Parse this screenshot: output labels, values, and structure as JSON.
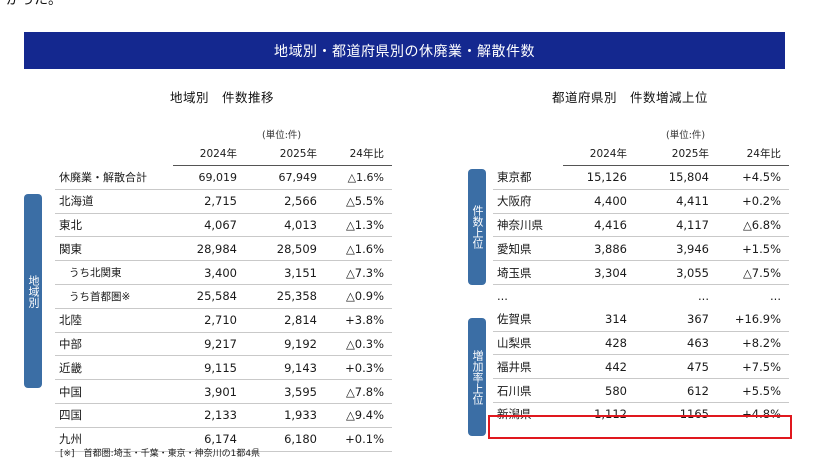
{
  "intro_text": "がった。",
  "banner_title": "地域別・都道府県別の休廃業・解散件数",
  "left": {
    "title": "地域別　件数推移",
    "unit": "(単位:件)",
    "side_label": "地域別",
    "headers": [
      "",
      "2024年",
      "2025年",
      "24年比"
    ],
    "rows": [
      {
        "name": "休廃業・解散合計",
        "y2024": "69,019",
        "y2025": "67,949",
        "ratio": "△1.6%"
      },
      {
        "name": "北海道",
        "y2024": "2,715",
        "y2025": "2,566",
        "ratio": "△5.5%"
      },
      {
        "name": "東北",
        "y2024": "4,067",
        "y2025": "4,013",
        "ratio": "△1.3%"
      },
      {
        "name": "関東",
        "y2024": "28,984",
        "y2025": "28,509",
        "ratio": "△1.6%"
      },
      {
        "name": "うち北関東",
        "y2024": "3,400",
        "y2025": "3,151",
        "ratio": "△7.3%"
      },
      {
        "name": "うち首都圏※",
        "y2024": "25,584",
        "y2025": "25,358",
        "ratio": "△0.9%"
      },
      {
        "name": "北陸",
        "y2024": "2,710",
        "y2025": "2,814",
        "ratio": "+3.8%"
      },
      {
        "name": "中部",
        "y2024": "9,217",
        "y2025": "9,192",
        "ratio": "△0.3%"
      },
      {
        "name": "近畿",
        "y2024": "9,115",
        "y2025": "9,143",
        "ratio": "+0.3%"
      },
      {
        "name": "中国",
        "y2024": "3,901",
        "y2025": "3,595",
        "ratio": "△7.8%"
      },
      {
        "name": "四国",
        "y2024": "2,133",
        "y2025": "1,933",
        "ratio": "△9.4%"
      },
      {
        "name": "九州",
        "y2024": "6,174",
        "y2025": "6,180",
        "ratio": "+0.1%"
      }
    ],
    "footnote": "[※]　首都圏:埼玉・千葉・東京・神奈川の1都4県"
  },
  "right": {
    "title": "都道府県別　件数増減上位",
    "unit": "(単位:件)",
    "headers": [
      "",
      "2024年",
      "2025年",
      "24年比"
    ],
    "group1_label": "件数上位",
    "group2_label": "増加率上位",
    "rows": [
      {
        "name": "東京都",
        "y2024": "15,126",
        "y2025": "15,804",
        "ratio": "+4.5%"
      },
      {
        "name": "大阪府",
        "y2024": "4,400",
        "y2025": "4,411",
        "ratio": "+0.2%"
      },
      {
        "name": "神奈川県",
        "y2024": "4,416",
        "y2025": "4,117",
        "ratio": "△6.8%"
      },
      {
        "name": "愛知県",
        "y2024": "3,886",
        "y2025": "3,946",
        "ratio": "+1.5%"
      },
      {
        "name": "埼玉県",
        "y2024": "3,304",
        "y2025": "3,055",
        "ratio": "△7.5%"
      },
      {
        "name": "...",
        "y2024": "",
        "y2025": "...",
        "ratio": "..."
      },
      {
        "name": "佐賀県",
        "y2024": "314",
        "y2025": "367",
        "ratio": "+16.9%"
      },
      {
        "name": "山梨県",
        "y2024": "428",
        "y2025": "463",
        "ratio": "+8.2%"
      },
      {
        "name": "福井県",
        "y2024": "442",
        "y2025": "475",
        "ratio": "+7.5%"
      },
      {
        "name": "石川県",
        "y2024": "580",
        "y2025": "612",
        "ratio": "+5.5%"
      },
      {
        "name": "新潟県",
        "y2024": "1,112",
        "y2025": "1165",
        "ratio": "+4.8%"
      }
    ],
    "highlight_color": "#e0181e"
  },
  "colors": {
    "banner": "#14288f",
    "side_label": "#3b6ea5"
  }
}
